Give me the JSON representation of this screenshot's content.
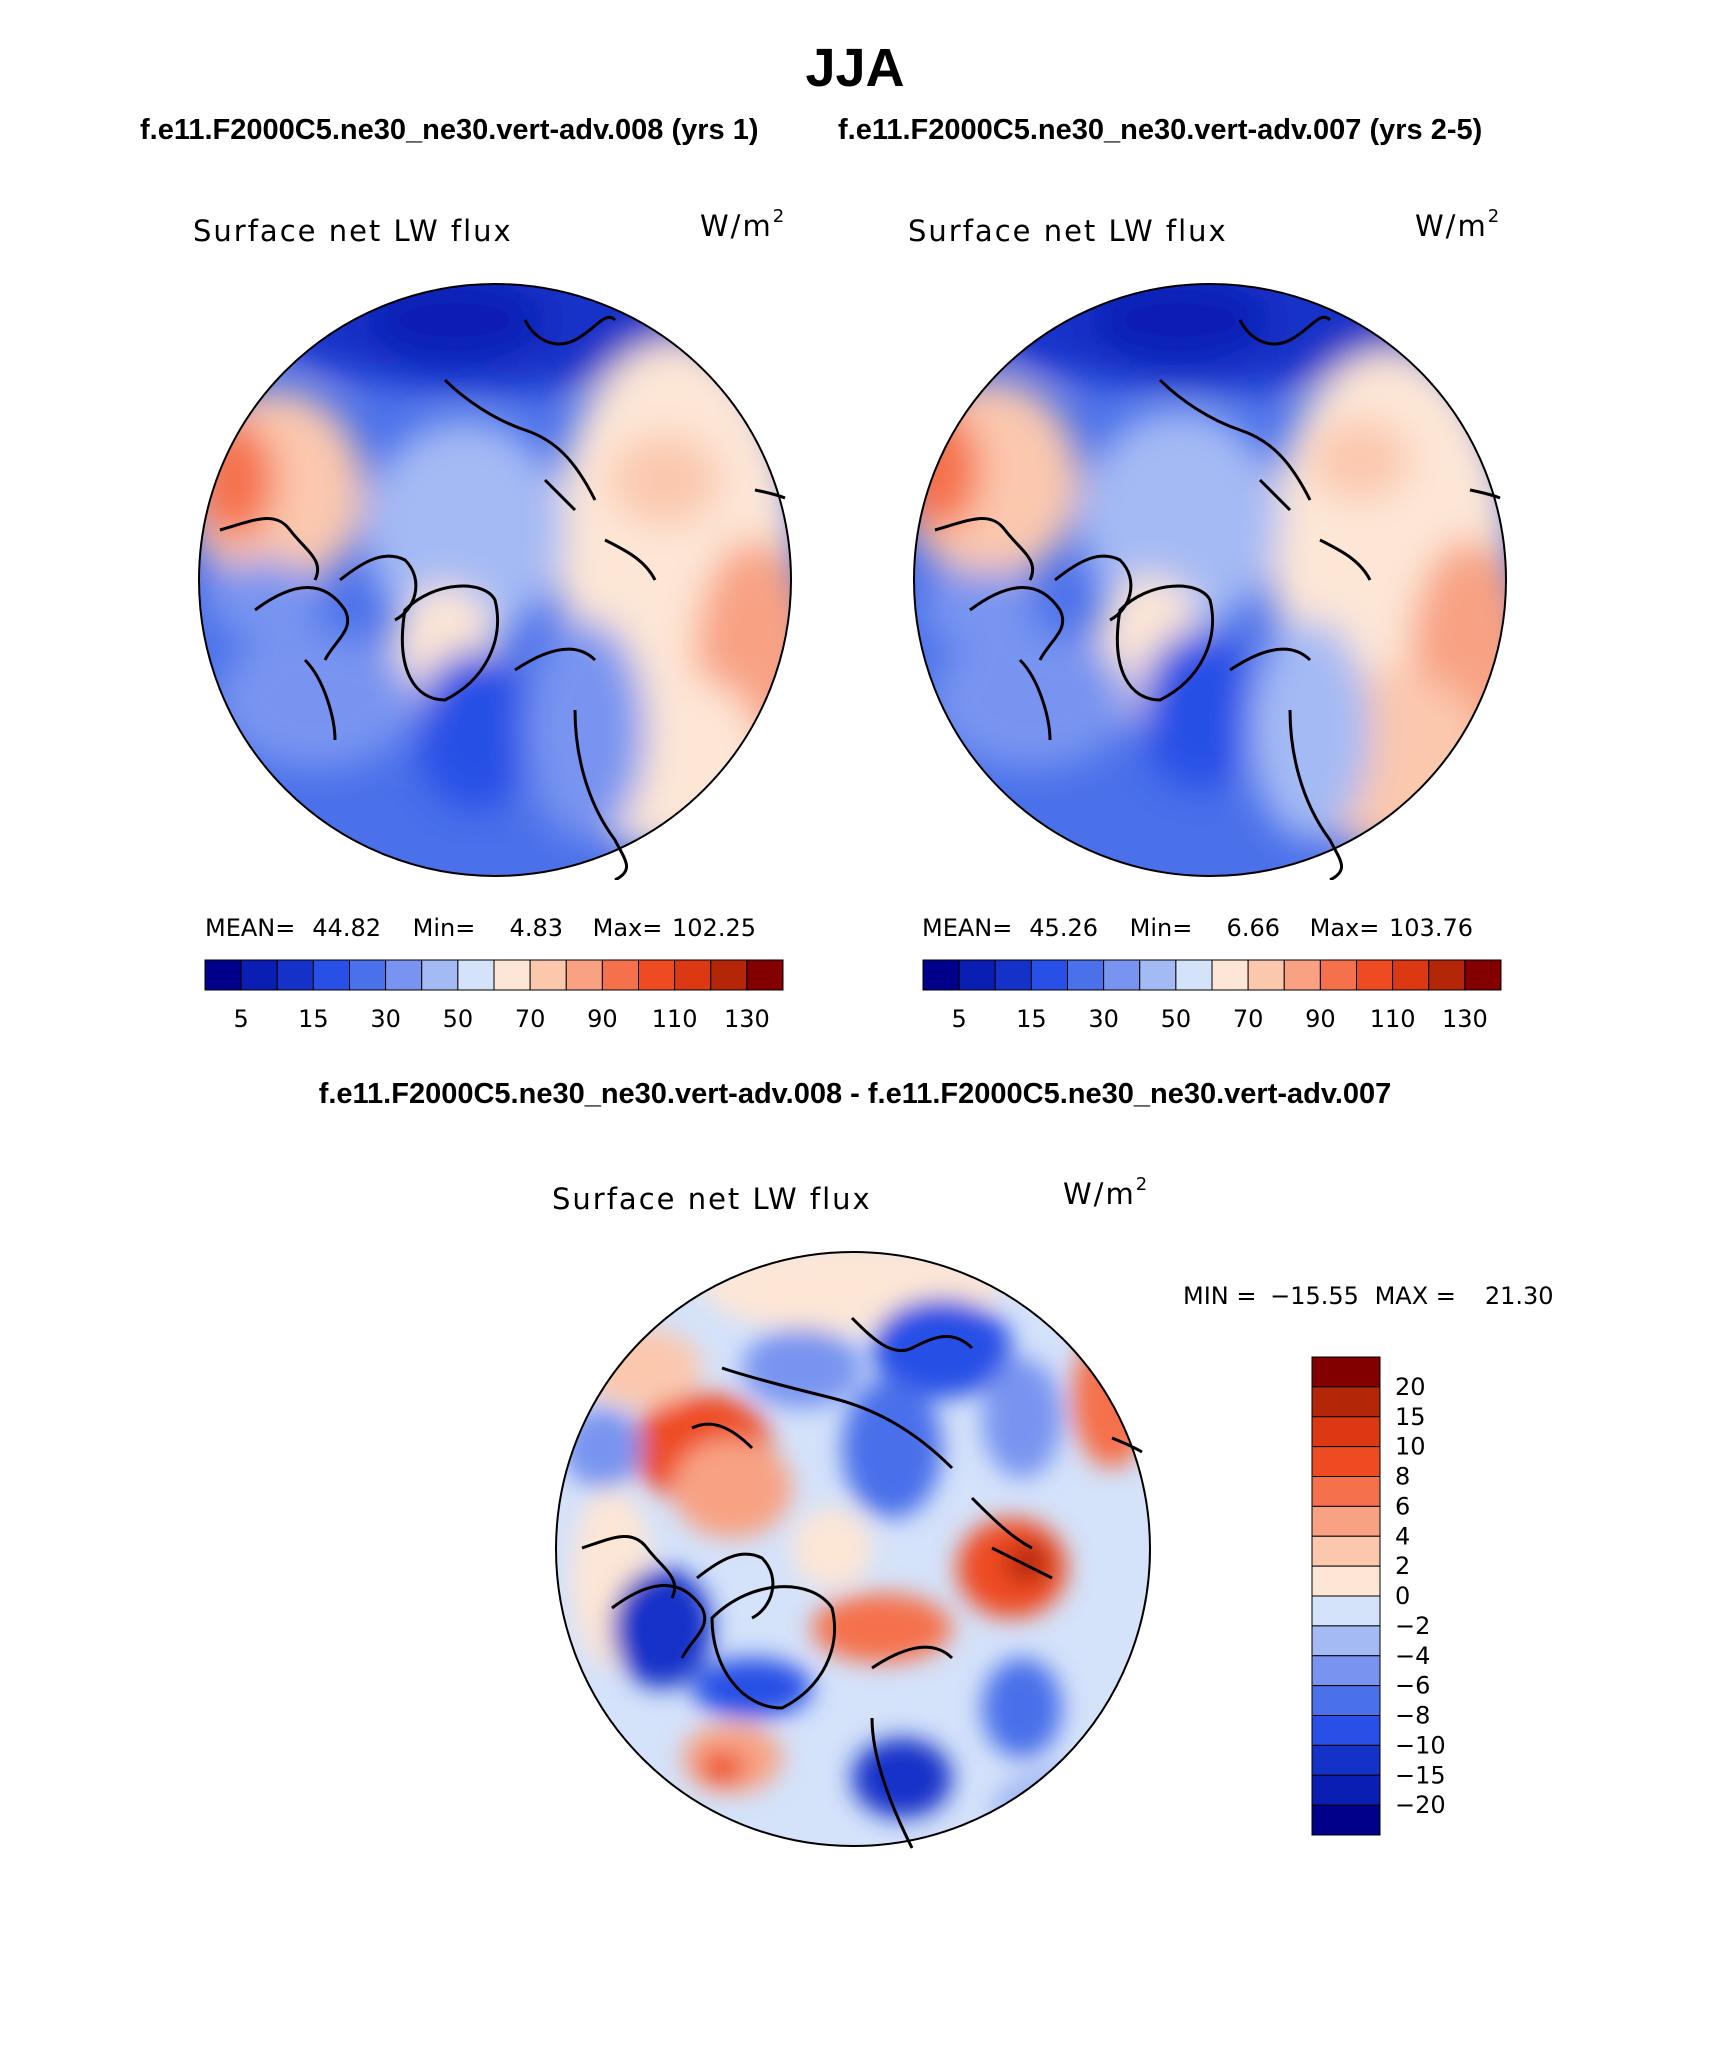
{
  "season": "JJA",
  "case_titles": {
    "left": "f.e11.F2000C5.ne30_ne30.vert-adv.008 (yrs 1)",
    "right": "f.e11.F2000C5.ne30_ne30.vert-adv.007 (yrs 2-5)"
  },
  "diff_title": "f.e11.F2000C5.ne30_ne30.vert-adv.008 - f.e11.F2000C5.ne30_ne30.vert-adv.007",
  "variable_label": "Surface net LW flux",
  "units_base": "W/m",
  "units_exp": "2",
  "panels": [
    {
      "mean_label": "MEAN=",
      "mean": "44.82",
      "min_label": "Min=",
      "min": "4.83",
      "max_label": "Max=",
      "max": "102.25"
    },
    {
      "mean_label": "MEAN=",
      "mean": "45.26",
      "min_label": "Min=",
      "min": "6.66",
      "max_label": "Max=",
      "max": "103.76"
    }
  ],
  "diff_stats": {
    "min_label": "MIN =",
    "min": "−15.55",
    "max_label": "MAX =",
    "max": "21.30"
  },
  "abs_colorbar": {
    "colors": [
      "#00008b",
      "#0a1eb4",
      "#1432c8",
      "#2850e6",
      "#4a70ea",
      "#7894f0",
      "#a4baf4",
      "#d4e2fa",
      "#fde6d6",
      "#fbc8ae",
      "#f8a283",
      "#f5714b",
      "#ee4b23",
      "#dc3814",
      "#b42608",
      "#820000"
    ],
    "tick_labels": [
      "5",
      "15",
      "30",
      "50",
      "70",
      "90",
      "110",
      "130"
    ]
  },
  "diff_colorbar": {
    "colors": [
      "#00008b",
      "#0a1eb4",
      "#1432c8",
      "#2850e6",
      "#4a70ea",
      "#7894f0",
      "#a4baf4",
      "#d4e2fa",
      "#fde6d6",
      "#fbc8ae",
      "#f8a283",
      "#f5714b",
      "#ee4b23",
      "#dc3814",
      "#b42608",
      "#820000"
    ],
    "tick_labels": [
      "20",
      "15",
      "10",
      "8",
      "6",
      "4",
      "2",
      "0",
      "−2",
      "−4",
      "−6",
      "−8",
      "−10",
      "−15",
      "−20"
    ]
  }
}
